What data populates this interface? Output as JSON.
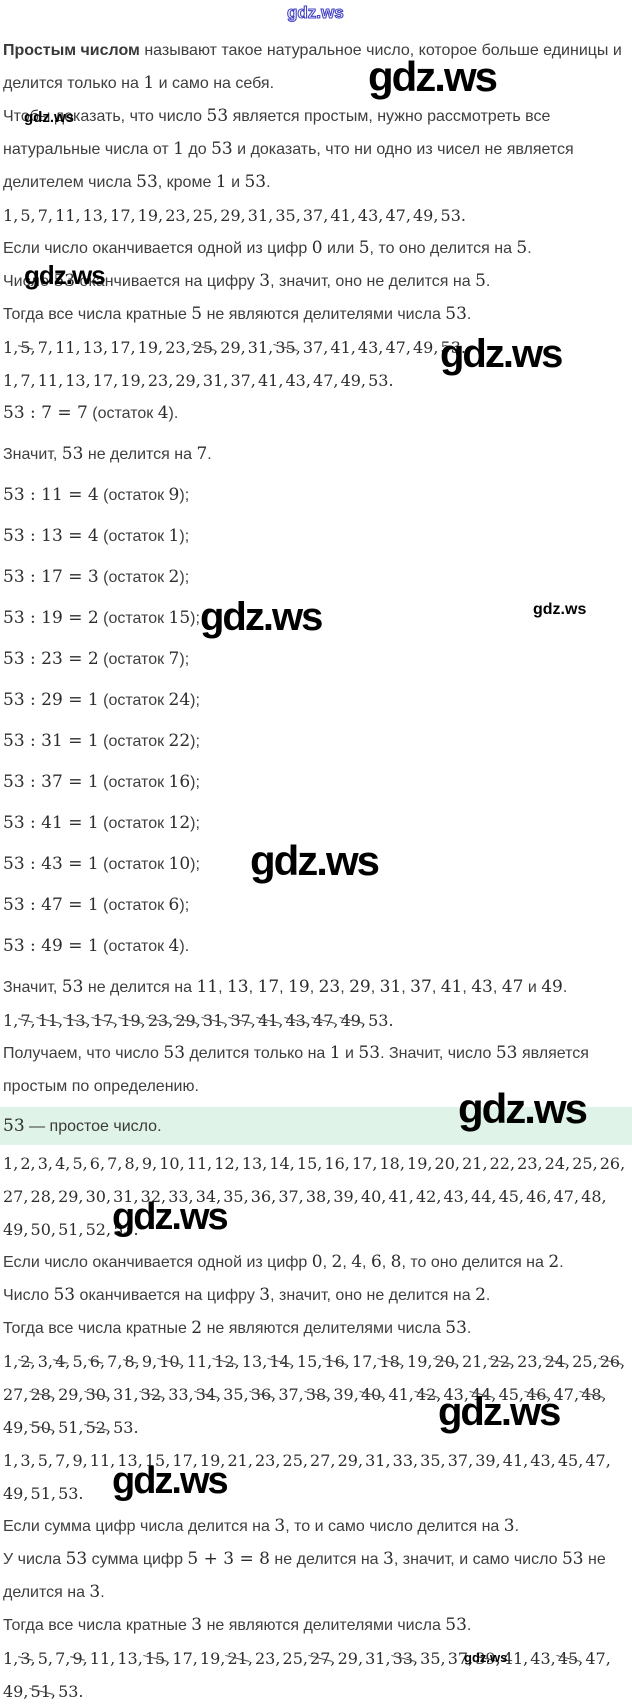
{
  "watermark": {
    "label": "gdz.ws"
  },
  "highlight": {
    "text": "53 — простое число."
  },
  "paragraphs": {
    "intro_bold": "Простым числом",
    "intro_rest": "называют такое натуральное число, которое больше единицы и делится только на 1 и само на себя.",
    "plan": "Чтобы доказать, что число 53 является простым, нужно рассмотреть все натуральные числа от 1 до 53 и доказать, что ни одно из чисел не является делителем числа 53, кроме 1 и 53.",
    "rule5": "Если число оканчивается одной из цифр 0 или 5, то оно делится на 5.",
    "check5": "Число 53 оканчивается на цифру 3, значит, оно не делится на 5.",
    "drop5": "Тогда все числа кратные 5 не являются делителями числа 53.",
    "div7": "53 : 7 = 7 (остаток 4).",
    "concl7": "Значит, 53 не делится на 7.",
    "concl_rest": "Значит, 53 не делится на 11, 13, 17, 19, 23, 29, 31, 37, 41, 43, 47 и 49.",
    "result": "Получаем, что число 53 делится только на 1 и 53. Значит, число 53 является простым по определению.",
    "rule2": "Если число оканчивается одной из цифр 0, 2, 4, 6, 8, то оно делится на 2.",
    "check2": "Число 53 оканчивается на цифру 3, значит, оно не делится на 2.",
    "drop2": "Тогда все числа кратные 2 не являются делителями числа 53.",
    "rule3": "Если сумма цифр числа делится на 3, то и само число делится на 3.",
    "check3": "У числа 53 сумма цифр 5 + 3 = 8 не делится на 3, значит, и само число 53 не делится на 3.",
    "drop3": "Тогда все числа кратные 3 не являются делителями числа 53."
  },
  "division": {
    "rows": [
      "53 : 11 = 4 (остаток 9);",
      "53 : 13 = 4 (остаток 1);",
      "53 : 17 = 3 (остаток 2);",
      "53 : 19 = 2 (остаток 15);",
      "53 : 23 = 2 (остаток 7);",
      "53 : 29 = 1 (остаток 24);",
      "53 : 31 = 1 (остаток 22);",
      "53 : 37 = 1 (остаток 16);",
      "53 : 41 = 1 (остаток 12);",
      "53 : 43 = 1 (остаток 10);",
      "53 : 47 = 1 (остаток 6);",
      "53 : 49 = 1 (остаток 4)."
    ]
  },
  "lists": {
    "candidates": [
      "1",
      "5",
      "7",
      "11",
      "13",
      "17",
      "19",
      "23",
      "25",
      "29",
      "31",
      "35",
      "37",
      "41",
      "43",
      "47",
      "49",
      "53"
    ],
    "strike5": [
      "1",
      "5*",
      "7",
      "11",
      "13",
      "17",
      "19",
      "23",
      "25*",
      "29",
      "31",
      "35*",
      "37",
      "41",
      "43",
      "47",
      "49",
      "53"
    ],
    "after5": [
      "1",
      "7",
      "11",
      "13",
      "17",
      "19",
      "23",
      "29",
      "31",
      "37",
      "41",
      "43",
      "47",
      "49",
      "53"
    ],
    "final_strike": [
      "1",
      "7*",
      "11*",
      "13*",
      "17*",
      "19*",
      "23*",
      "29*",
      "31*",
      "37*",
      "41*",
      "43*",
      "47*",
      "49*",
      "53"
    ],
    "full": [
      "1",
      "2",
      "3",
      "4",
      "5",
      "6",
      "7",
      "8",
      "9",
      "10",
      "11",
      "12",
      "13",
      "14",
      "15",
      "16",
      "17",
      "18",
      "19",
      "20",
      "21",
      "22",
      "23",
      "24",
      "25",
      "26",
      "27",
      "28",
      "29",
      "30",
      "31",
      "32",
      "33",
      "34",
      "35",
      "36",
      "37",
      "38",
      "39",
      "40",
      "41",
      "42",
      "43",
      "44",
      "45",
      "46",
      "47",
      "48",
      "49",
      "50",
      "51",
      "52",
      "53"
    ],
    "strike2": [
      "1",
      "2*",
      "3",
      "4*",
      "5",
      "6*",
      "7",
      "8*",
      "9",
      "10*",
      "11",
      "12*",
      "13",
      "14*",
      "15",
      "16*",
      "17",
      "18*",
      "19",
      "20*",
      "21",
      "22*",
      "23",
      "24*",
      "25",
      "26*",
      "27",
      "28*",
      "29",
      "30*",
      "31",
      "32*",
      "33",
      "34*",
      "35",
      "36*",
      "37",
      "38*",
      "39",
      "40*",
      "41",
      "42*",
      "43",
      "44*",
      "45",
      "46*",
      "47",
      "48*",
      "49",
      "50*",
      "51",
      "52*",
      "53"
    ],
    "odds": [
      "1",
      "3",
      "5",
      "7",
      "9",
      "11",
      "13",
      "15",
      "17",
      "19",
      "21",
      "23",
      "25",
      "27",
      "29",
      "31",
      "33",
      "35",
      "37",
      "39",
      "41",
      "43",
      "45",
      "47",
      "49",
      "51",
      "53"
    ],
    "strike3": [
      "1",
      "3*",
      "5",
      "7",
      "9*",
      "11",
      "13",
      "15*",
      "17",
      "19",
      "21*",
      "23",
      "25",
      "27*",
      "29",
      "31",
      "33*",
      "35",
      "37",
      "39*",
      "41",
      "43",
      "45*",
      "47",
      "49",
      "51*",
      "53"
    ]
  }
}
